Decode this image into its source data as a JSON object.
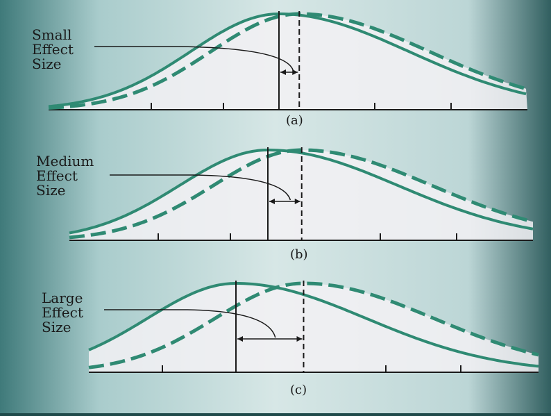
{
  "panels": [
    {
      "id": "a",
      "caption": "(a)",
      "label_lines": [
        "Small",
        "Effect",
        "Size"
      ],
      "solid_mean": 0.0,
      "dashed_mean": 0.3
    },
    {
      "id": "b",
      "caption": "(b)",
      "label_lines": [
        "Medium",
        "Effect",
        "Size"
      ],
      "solid_mean": 0.0,
      "dashed_mean": 0.5
    },
    {
      "id": "c",
      "caption": "(c)",
      "label_lines": [
        "Large",
        "Effect",
        "Size"
      ],
      "solid_mean": 0.0,
      "dashed_mean": 1.0
    }
  ],
  "colors": {
    "curve": "#2f8a73",
    "axis": "#1a1a1a",
    "fill": "#f3f1f5",
    "paper": "#c9dede",
    "paper_dark": "#2a5656"
  }
}
